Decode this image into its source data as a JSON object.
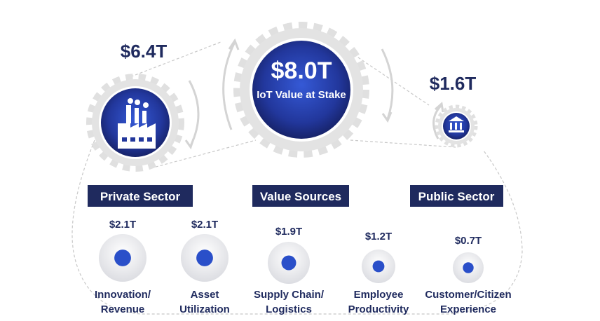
{
  "gears": {
    "private": {
      "value": "$6.4T"
    },
    "total": {
      "value": "$8.0T",
      "label": "IoT Value at Stake"
    },
    "public": {
      "value": "$1.6T"
    }
  },
  "sections": [
    "Private Sector",
    "Value Sources",
    "Public Sector"
  ],
  "items": [
    {
      "value": "$2.1T",
      "label": [
        "Innovation/",
        "Revenue"
      ]
    },
    {
      "value": "$2.1T",
      "label": [
        "Asset",
        "Utilization"
      ]
    },
    {
      "value": "$1.9T",
      "label": [
        "Supply Chain/",
        "Logistics"
      ]
    },
    {
      "value": "$1.2T",
      "label": [
        "Employee",
        "Productivity"
      ]
    },
    {
      "value": "$0.7T",
      "label": [
        "Customer/Citizen",
        "Experience"
      ]
    }
  ]
}
